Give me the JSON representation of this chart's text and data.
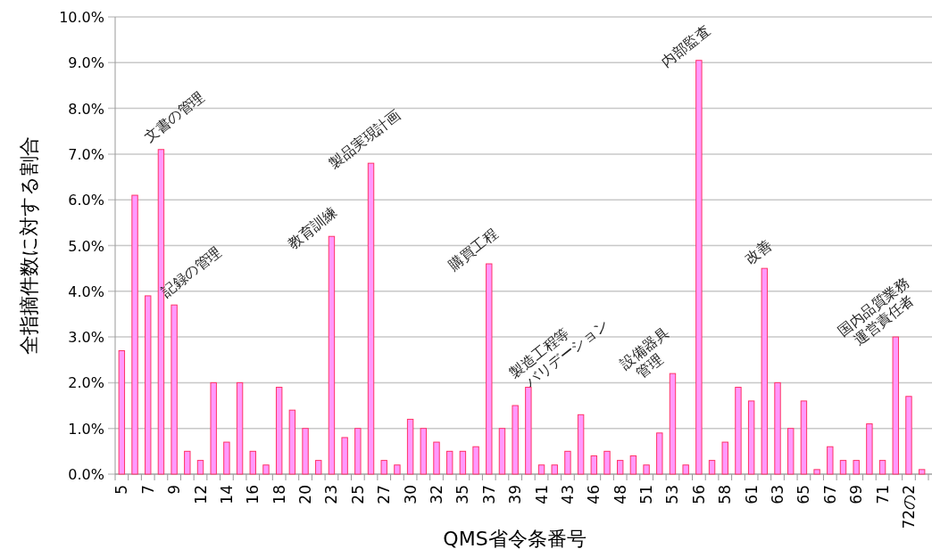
{
  "chart_data": {
    "type": "bar",
    "xlabel": "QMS省令条番号",
    "ylabel": "全指摘件数に対する割合",
    "categories": [
      "5",
      null,
      "7",
      null,
      "9",
      null,
      "12",
      null,
      "14",
      null,
      "16",
      null,
      "18",
      null,
      "20",
      null,
      "23",
      null,
      "25",
      null,
      "27",
      null,
      "30",
      null,
      "32",
      null,
      "35",
      null,
      "37",
      null,
      "39",
      null,
      "41",
      null,
      "43",
      null,
      "46",
      null,
      "48",
      null,
      "51",
      null,
      "53",
      null,
      "56",
      null,
      "58",
      null,
      "61",
      null,
      "63",
      null,
      "65",
      null,
      "67",
      null,
      "69",
      null,
      "71",
      null,
      "72の2",
      null
    ],
    "values": [
      2.7,
      6.1,
      3.9,
      7.1,
      3.7,
      0.5,
      0.3,
      2.0,
      0.7,
      2.0,
      0.5,
      0.2,
      1.9,
      1.4,
      1.0,
      0.3,
      5.2,
      0.8,
      1.0,
      6.8,
      0.3,
      0.2,
      1.2,
      1.0,
      0.7,
      0.5,
      0.5,
      0.6,
      4.6,
      1.0,
      1.5,
      1.9,
      0.2,
      0.2,
      0.5,
      1.3,
      0.4,
      0.5,
      0.3,
      0.4,
      0.2,
      0.9,
      2.2,
      0.2,
      9.05,
      0.3,
      0.7,
      1.9,
      1.6,
      4.5,
      2.0,
      1.0,
      1.6,
      0.1,
      0.6,
      0.3,
      0.3,
      1.1,
      0.3,
      3.0,
      1.7,
      0.1
    ],
    "color": "#ff99ff",
    "ylim": [
      0,
      10
    ],
    "yticks": [
      {
        "value": 0,
        "label": "0.0%"
      },
      {
        "value": 1,
        "label": "1.0%"
      },
      {
        "value": 2,
        "label": "2.0%"
      },
      {
        "value": 3,
        "label": "3.0%"
      },
      {
        "value": 4,
        "label": "4.0%"
      },
      {
        "value": 5,
        "label": "5.0%"
      },
      {
        "value": 6,
        "label": "6.0%"
      },
      {
        "value": 7,
        "label": "7.0%"
      },
      {
        "value": 8,
        "label": "8.0%"
      },
      {
        "value": 9,
        "label": "9.0%"
      },
      {
        "value": 10,
        "label": "10.0%"
      }
    ],
    "grid": "y",
    "annotations": [
      "文書の管理",
      "記録の管理",
      "教育訓練",
      "製品実現計画",
      "購買工程",
      "製造工程等\nバリデーション",
      "設備器具\n管理",
      "内部監査",
      "改善",
      "国内品質業務\n運営責任者"
    ]
  }
}
